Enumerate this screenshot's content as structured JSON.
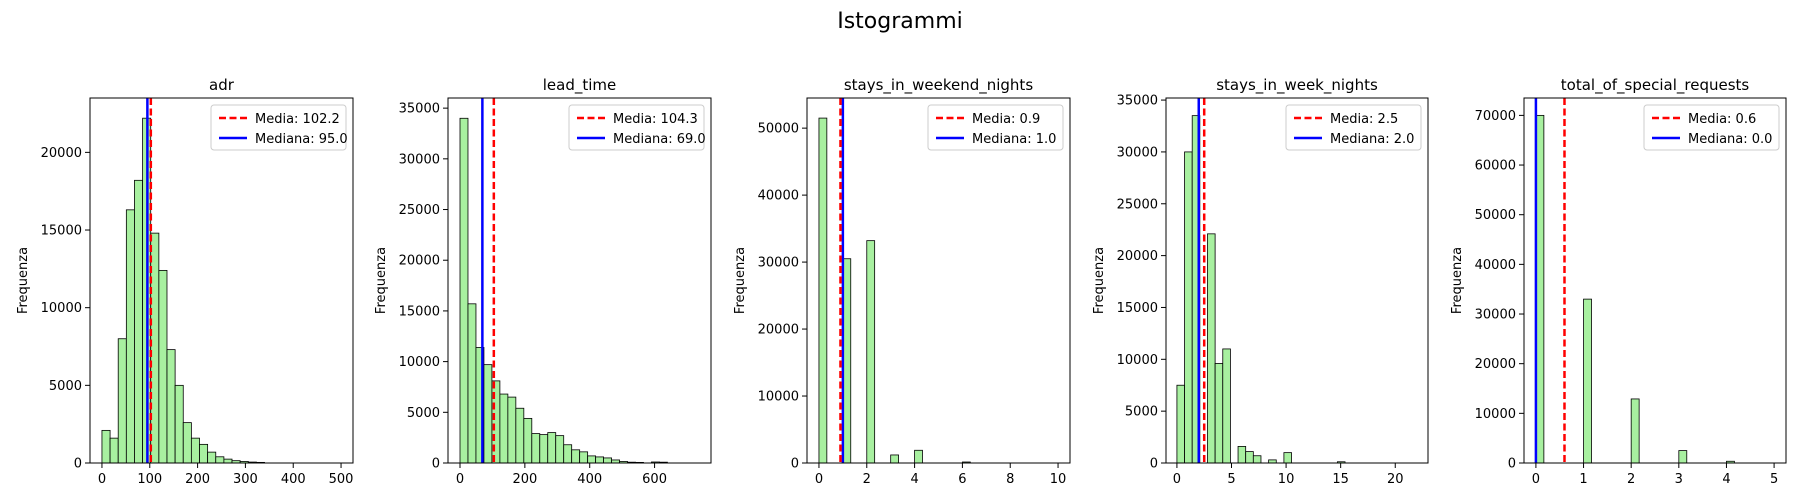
{
  "figure": {
    "title": "Istogrammi"
  },
  "chart_data": [
    {
      "type": "bar",
      "title": "adr",
      "xlabel": "",
      "ylabel": "Frequenza",
      "xlim": [
        -25,
        525
      ],
      "ylim": [
        0,
        23500
      ],
      "xticks": [
        0,
        100,
        200,
        300,
        400,
        500
      ],
      "yticks": [
        0,
        5000,
        10000,
        15000,
        20000
      ],
      "bins": [
        {
          "x0": 0,
          "x1": 17,
          "y": 2100
        },
        {
          "x0": 17,
          "x1": 34,
          "y": 1600
        },
        {
          "x0": 34,
          "x1": 51,
          "y": 8000
        },
        {
          "x0": 51,
          "x1": 68,
          "y": 16300
        },
        {
          "x0": 68,
          "x1": 85,
          "y": 18200
        },
        {
          "x0": 85,
          "x1": 102,
          "y": 22200
        },
        {
          "x0": 102,
          "x1": 119,
          "y": 14800
        },
        {
          "x0": 119,
          "x1": 136,
          "y": 12400
        },
        {
          "x0": 136,
          "x1": 153,
          "y": 7300
        },
        {
          "x0": 153,
          "x1": 170,
          "y": 5000
        },
        {
          "x0": 170,
          "x1": 187,
          "y": 2600
        },
        {
          "x0": 187,
          "x1": 204,
          "y": 1600
        },
        {
          "x0": 204,
          "x1": 221,
          "y": 1200
        },
        {
          "x0": 221,
          "x1": 238,
          "y": 700
        },
        {
          "x0": 238,
          "x1": 255,
          "y": 400
        },
        {
          "x0": 255,
          "x1": 272,
          "y": 250
        },
        {
          "x0": 272,
          "x1": 289,
          "y": 150
        },
        {
          "x0": 289,
          "x1": 306,
          "y": 100
        },
        {
          "x0": 306,
          "x1": 323,
          "y": 60
        },
        {
          "x0": 323,
          "x1": 340,
          "y": 40
        }
      ],
      "mean": {
        "value": 102.2,
        "label": "Media: 102.2"
      },
      "median": {
        "value": 95.0,
        "label": "Mediana: 95.0"
      }
    },
    {
      "type": "bar",
      "title": "lead_time",
      "xlabel": "",
      "ylabel": "Frequenza",
      "xlim": [
        -37,
        774
      ],
      "ylim": [
        0,
        36000
      ],
      "xticks": [
        0,
        200,
        400,
        600
      ],
      "yticks": [
        0,
        5000,
        10000,
        15000,
        20000,
        25000,
        30000,
        35000
      ],
      "bins": [
        {
          "x0": 0,
          "x1": 24.6,
          "y": 34000
        },
        {
          "x0": 24.6,
          "x1": 49.2,
          "y": 15700
        },
        {
          "x0": 49.2,
          "x1": 73.8,
          "y": 11400
        },
        {
          "x0": 73.8,
          "x1": 98.4,
          "y": 9700
        },
        {
          "x0": 98.4,
          "x1": 123,
          "y": 8100
        },
        {
          "x0": 123,
          "x1": 147.6,
          "y": 6800
        },
        {
          "x0": 147.6,
          "x1": 172.2,
          "y": 6500
        },
        {
          "x0": 172.2,
          "x1": 196.8,
          "y": 5400
        },
        {
          "x0": 196.8,
          "x1": 221.4,
          "y": 4400
        },
        {
          "x0": 221.4,
          "x1": 246,
          "y": 2900
        },
        {
          "x0": 246,
          "x1": 270.6,
          "y": 2800
        },
        {
          "x0": 270.6,
          "x1": 295.2,
          "y": 3000
        },
        {
          "x0": 295.2,
          "x1": 319.8,
          "y": 2700
        },
        {
          "x0": 319.8,
          "x1": 344.4,
          "y": 1800
        },
        {
          "x0": 344.4,
          "x1": 369,
          "y": 1300
        },
        {
          "x0": 369,
          "x1": 393.6,
          "y": 1100
        },
        {
          "x0": 393.6,
          "x1": 418.2,
          "y": 700
        },
        {
          "x0": 418.2,
          "x1": 442.8,
          "y": 600
        },
        {
          "x0": 442.8,
          "x1": 467.4,
          "y": 500
        },
        {
          "x0": 467.4,
          "x1": 492,
          "y": 300
        },
        {
          "x0": 492,
          "x1": 516.6,
          "y": 150
        },
        {
          "x0": 516.6,
          "x1": 541.2,
          "y": 80
        },
        {
          "x0": 541.2,
          "x1": 565.8,
          "y": 60
        },
        {
          "x0": 590.4,
          "x1": 615,
          "y": 100
        },
        {
          "x0": 615,
          "x1": 639.6,
          "y": 80
        }
      ],
      "mean": {
        "value": 104.3,
        "label": "Media: 104.3"
      },
      "median": {
        "value": 69.0,
        "label": "Mediana: 69.0"
      }
    },
    {
      "type": "bar",
      "title": "stays_in_weekend_nights",
      "xlabel": "",
      "ylabel": "Frequenza",
      "xlim": [
        -0.5,
        10.5
      ],
      "ylim": [
        0,
        54500
      ],
      "xticks": [
        0,
        2,
        4,
        6,
        8,
        10
      ],
      "yticks": [
        0,
        10000,
        20000,
        30000,
        40000,
        50000
      ],
      "bins": [
        {
          "x0": 0,
          "x1": 0.33,
          "y": 51500
        },
        {
          "x0": 1,
          "x1": 1.33,
          "y": 30500
        },
        {
          "x0": 2,
          "x1": 2.33,
          "y": 33200
        },
        {
          "x0": 3,
          "x1": 3.33,
          "y": 1200
        },
        {
          "x0": 4,
          "x1": 4.33,
          "y": 1900
        },
        {
          "x0": 6,
          "x1": 6.33,
          "y": 150
        }
      ],
      "mean": {
        "value": 0.9,
        "label": "Media: 0.9"
      },
      "median": {
        "value": 1.0,
        "label": "Mediana: 1.0"
      }
    },
    {
      "type": "bar",
      "title": "stays_in_week_nights",
      "xlabel": "",
      "ylabel": "Frequenza",
      "xlim": [
        -1,
        23
      ],
      "ylim": [
        0,
        35200
      ],
      "xticks": [
        0,
        5,
        10,
        15,
        20
      ],
      "yticks": [
        0,
        5000,
        10000,
        15000,
        20000,
        25000,
        30000,
        35000
      ],
      "bins": [
        {
          "x0": 0,
          "x1": 0.7,
          "y": 7500
        },
        {
          "x0": 0.7,
          "x1": 1.4,
          "y": 30000
        },
        {
          "x0": 1.4,
          "x1": 2.1,
          "y": 33500
        },
        {
          "x0": 2.1,
          "x1": 2.8,
          "y": 0
        },
        {
          "x0": 2.8,
          "x1": 3.5,
          "y": 22100
        },
        {
          "x0": 3.5,
          "x1": 4.2,
          "y": 9600
        },
        {
          "x0": 4.2,
          "x1": 4.9,
          "y": 11000
        },
        {
          "x0": 5.6,
          "x1": 6.3,
          "y": 1600
        },
        {
          "x0": 6.3,
          "x1": 7.0,
          "y": 1100
        },
        {
          "x0": 7.0,
          "x1": 7.7,
          "y": 700
        },
        {
          "x0": 8.4,
          "x1": 9.1,
          "y": 300
        },
        {
          "x0": 9.8,
          "x1": 10.5,
          "y": 1000
        },
        {
          "x0": 14.7,
          "x1": 15.4,
          "y": 120
        }
      ],
      "mean": {
        "value": 2.5,
        "label": "Media: 2.5"
      },
      "median": {
        "value": 2.0,
        "label": "Mediana: 2.0"
      }
    },
    {
      "type": "bar",
      "title": "total_of_special_requests",
      "xlabel": "",
      "ylabel": "Frequenza",
      "xlim": [
        -0.25,
        5.25
      ],
      "ylim": [
        0,
        73500
      ],
      "xticks": [
        0,
        1,
        2,
        3,
        4,
        5
      ],
      "yticks": [
        0,
        10000,
        20000,
        30000,
        40000,
        50000,
        60000,
        70000
      ],
      "bins": [
        {
          "x0": 0,
          "x1": 0.167,
          "y": 70000
        },
        {
          "x0": 1,
          "x1": 1.167,
          "y": 33000
        },
        {
          "x0": 2,
          "x1": 2.167,
          "y": 12900
        },
        {
          "x0": 3,
          "x1": 3.167,
          "y": 2500
        },
        {
          "x0": 4,
          "x1": 4.167,
          "y": 350
        }
      ],
      "mean": {
        "value": 0.6,
        "label": "Media: 0.6"
      },
      "median": {
        "value": 0.0,
        "label": "Mediana: 0.0"
      }
    }
  ]
}
